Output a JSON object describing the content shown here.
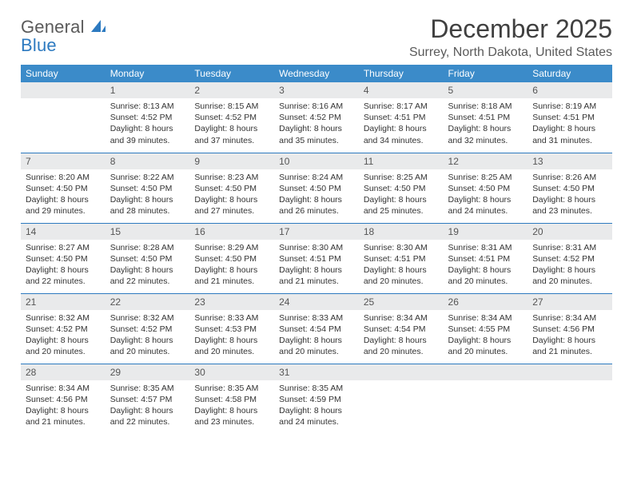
{
  "logo": {
    "line1": "General",
    "line2": "Blue"
  },
  "title": "December 2025",
  "location": "Surrey, North Dakota, United States",
  "colors": {
    "header_bg": "#3b8bc9",
    "divider": "#2d7ac0",
    "daynum_bg": "#e9eaeb",
    "text": "#333333",
    "logo_gray": "#5a5a5a",
    "logo_blue": "#2d7ac0"
  },
  "weekdays": [
    "Sunday",
    "Monday",
    "Tuesday",
    "Wednesday",
    "Thursday",
    "Friday",
    "Saturday"
  ],
  "weeks": [
    [
      null,
      {
        "n": "1",
        "sr": "Sunrise: 8:13 AM",
        "ss": "Sunset: 4:52 PM",
        "d1": "Daylight: 8 hours",
        "d2": "and 39 minutes."
      },
      {
        "n": "2",
        "sr": "Sunrise: 8:15 AM",
        "ss": "Sunset: 4:52 PM",
        "d1": "Daylight: 8 hours",
        "d2": "and 37 minutes."
      },
      {
        "n": "3",
        "sr": "Sunrise: 8:16 AM",
        "ss": "Sunset: 4:52 PM",
        "d1": "Daylight: 8 hours",
        "d2": "and 35 minutes."
      },
      {
        "n": "4",
        "sr": "Sunrise: 8:17 AM",
        "ss": "Sunset: 4:51 PM",
        "d1": "Daylight: 8 hours",
        "d2": "and 34 minutes."
      },
      {
        "n": "5",
        "sr": "Sunrise: 8:18 AM",
        "ss": "Sunset: 4:51 PM",
        "d1": "Daylight: 8 hours",
        "d2": "and 32 minutes."
      },
      {
        "n": "6",
        "sr": "Sunrise: 8:19 AM",
        "ss": "Sunset: 4:51 PM",
        "d1": "Daylight: 8 hours",
        "d2": "and 31 minutes."
      }
    ],
    [
      {
        "n": "7",
        "sr": "Sunrise: 8:20 AM",
        "ss": "Sunset: 4:50 PM",
        "d1": "Daylight: 8 hours",
        "d2": "and 29 minutes."
      },
      {
        "n": "8",
        "sr": "Sunrise: 8:22 AM",
        "ss": "Sunset: 4:50 PM",
        "d1": "Daylight: 8 hours",
        "d2": "and 28 minutes."
      },
      {
        "n": "9",
        "sr": "Sunrise: 8:23 AM",
        "ss": "Sunset: 4:50 PM",
        "d1": "Daylight: 8 hours",
        "d2": "and 27 minutes."
      },
      {
        "n": "10",
        "sr": "Sunrise: 8:24 AM",
        "ss": "Sunset: 4:50 PM",
        "d1": "Daylight: 8 hours",
        "d2": "and 26 minutes."
      },
      {
        "n": "11",
        "sr": "Sunrise: 8:25 AM",
        "ss": "Sunset: 4:50 PM",
        "d1": "Daylight: 8 hours",
        "d2": "and 25 minutes."
      },
      {
        "n": "12",
        "sr": "Sunrise: 8:25 AM",
        "ss": "Sunset: 4:50 PM",
        "d1": "Daylight: 8 hours",
        "d2": "and 24 minutes."
      },
      {
        "n": "13",
        "sr": "Sunrise: 8:26 AM",
        "ss": "Sunset: 4:50 PM",
        "d1": "Daylight: 8 hours",
        "d2": "and 23 minutes."
      }
    ],
    [
      {
        "n": "14",
        "sr": "Sunrise: 8:27 AM",
        "ss": "Sunset: 4:50 PM",
        "d1": "Daylight: 8 hours",
        "d2": "and 22 minutes."
      },
      {
        "n": "15",
        "sr": "Sunrise: 8:28 AM",
        "ss": "Sunset: 4:50 PM",
        "d1": "Daylight: 8 hours",
        "d2": "and 22 minutes."
      },
      {
        "n": "16",
        "sr": "Sunrise: 8:29 AM",
        "ss": "Sunset: 4:50 PM",
        "d1": "Daylight: 8 hours",
        "d2": "and 21 minutes."
      },
      {
        "n": "17",
        "sr": "Sunrise: 8:30 AM",
        "ss": "Sunset: 4:51 PM",
        "d1": "Daylight: 8 hours",
        "d2": "and 21 minutes."
      },
      {
        "n": "18",
        "sr": "Sunrise: 8:30 AM",
        "ss": "Sunset: 4:51 PM",
        "d1": "Daylight: 8 hours",
        "d2": "and 20 minutes."
      },
      {
        "n": "19",
        "sr": "Sunrise: 8:31 AM",
        "ss": "Sunset: 4:51 PM",
        "d1": "Daylight: 8 hours",
        "d2": "and 20 minutes."
      },
      {
        "n": "20",
        "sr": "Sunrise: 8:31 AM",
        "ss": "Sunset: 4:52 PM",
        "d1": "Daylight: 8 hours",
        "d2": "and 20 minutes."
      }
    ],
    [
      {
        "n": "21",
        "sr": "Sunrise: 8:32 AM",
        "ss": "Sunset: 4:52 PM",
        "d1": "Daylight: 8 hours",
        "d2": "and 20 minutes."
      },
      {
        "n": "22",
        "sr": "Sunrise: 8:32 AM",
        "ss": "Sunset: 4:52 PM",
        "d1": "Daylight: 8 hours",
        "d2": "and 20 minutes."
      },
      {
        "n": "23",
        "sr": "Sunrise: 8:33 AM",
        "ss": "Sunset: 4:53 PM",
        "d1": "Daylight: 8 hours",
        "d2": "and 20 minutes."
      },
      {
        "n": "24",
        "sr": "Sunrise: 8:33 AM",
        "ss": "Sunset: 4:54 PM",
        "d1": "Daylight: 8 hours",
        "d2": "and 20 minutes."
      },
      {
        "n": "25",
        "sr": "Sunrise: 8:34 AM",
        "ss": "Sunset: 4:54 PM",
        "d1": "Daylight: 8 hours",
        "d2": "and 20 minutes."
      },
      {
        "n": "26",
        "sr": "Sunrise: 8:34 AM",
        "ss": "Sunset: 4:55 PM",
        "d1": "Daylight: 8 hours",
        "d2": "and 20 minutes."
      },
      {
        "n": "27",
        "sr": "Sunrise: 8:34 AM",
        "ss": "Sunset: 4:56 PM",
        "d1": "Daylight: 8 hours",
        "d2": "and 21 minutes."
      }
    ],
    [
      {
        "n": "28",
        "sr": "Sunrise: 8:34 AM",
        "ss": "Sunset: 4:56 PM",
        "d1": "Daylight: 8 hours",
        "d2": "and 21 minutes."
      },
      {
        "n": "29",
        "sr": "Sunrise: 8:35 AM",
        "ss": "Sunset: 4:57 PM",
        "d1": "Daylight: 8 hours",
        "d2": "and 22 minutes."
      },
      {
        "n": "30",
        "sr": "Sunrise: 8:35 AM",
        "ss": "Sunset: 4:58 PM",
        "d1": "Daylight: 8 hours",
        "d2": "and 23 minutes."
      },
      {
        "n": "31",
        "sr": "Sunrise: 8:35 AM",
        "ss": "Sunset: 4:59 PM",
        "d1": "Daylight: 8 hours",
        "d2": "and 24 minutes."
      },
      null,
      null,
      null
    ]
  ]
}
